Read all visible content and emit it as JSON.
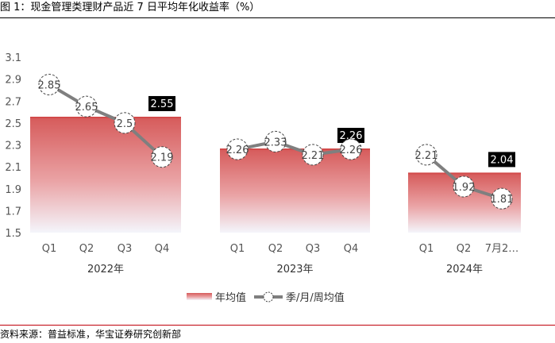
{
  "figure_title": "图 1：现金管理类理财产品近 7 日平均年化收益率（%）",
  "source": "资料来源：普益标准，华宝证券研究创新部",
  "chart_data": {
    "type": "bar+line",
    "ylim": [
      1.5,
      3.1
    ],
    "yticks": [
      "1.5",
      "1.7",
      "1.9",
      "2.1",
      "2.3",
      "2.5",
      "2.7",
      "2.9",
      "3.1"
    ],
    "grid": false,
    "legend_position": "bottom",
    "groups": [
      {
        "label": "2022年",
        "annual_avg": 2.55,
        "annual_label": "2.55",
        "categories": [
          "Q1",
          "Q2",
          "Q3",
          "Q4"
        ],
        "values": [
          2.85,
          2.65,
          2.5,
          2.19
        ],
        "value_labels": [
          "2.85",
          "2.65",
          "2.5",
          "2.19"
        ]
      },
      {
        "label": "2023年",
        "annual_avg": 2.26,
        "annual_label": "2.26",
        "categories": [
          "Q1",
          "Q2",
          "Q3",
          "Q4"
        ],
        "values": [
          2.26,
          2.33,
          2.21,
          2.26
        ],
        "value_labels": [
          "2.26",
          "2.33",
          "2.21",
          "2.26"
        ]
      },
      {
        "label": "2024年",
        "annual_avg": 2.04,
        "annual_label": "2.04",
        "categories": [
          "Q1",
          "Q2",
          "7月2…"
        ],
        "values": [
          2.21,
          1.92,
          1.81
        ],
        "value_labels": [
          "2.21",
          "1.92",
          "1.81"
        ]
      }
    ],
    "series": [
      {
        "name": "年均值",
        "type": "bar",
        "color": "#d9534f"
      },
      {
        "name": "季/月/周均值",
        "type": "line",
        "color": "#7f7f7f"
      }
    ]
  }
}
